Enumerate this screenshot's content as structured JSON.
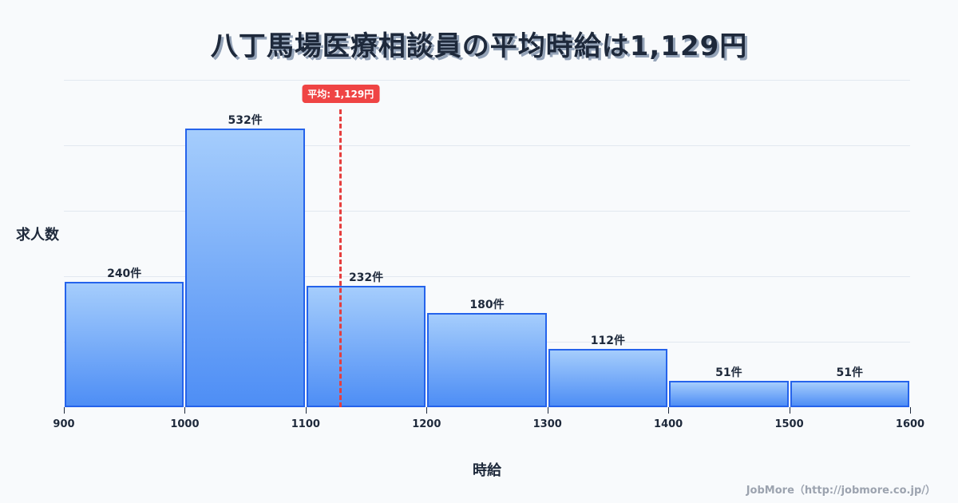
{
  "title": "八丁馬場医療相談員の平均時給は1,129円",
  "y_axis_label": "求人数",
  "x_axis_label": "時給",
  "credit": "JobMore（http://jobmore.co.jp/）",
  "average_badge": "平均: 1,129円",
  "colors": {
    "bar_border": "#2563eb",
    "bar_top": "#a5cdfc",
    "bar_bottom": "#4e8ef5",
    "average_line": "#ef4444",
    "text": "#1e293b"
  },
  "chart_data": {
    "type": "bar",
    "title": "八丁馬場医療相談員の平均時給は1,129円",
    "xlabel": "時給",
    "ylabel": "求人数",
    "bins": [
      [
        900,
        1000
      ],
      [
        1000,
        1100
      ],
      [
        1100,
        1200
      ],
      [
        1200,
        1300
      ],
      [
        1300,
        1400
      ],
      [
        1400,
        1500
      ],
      [
        1500,
        1600
      ]
    ],
    "categories": [
      "900-1000",
      "1000-1100",
      "1100-1200",
      "1200-1300",
      "1300-1400",
      "1400-1500",
      "1500-1600"
    ],
    "values": [
      240,
      532,
      232,
      180,
      112,
      51,
      51
    ],
    "value_labels": [
      "240件",
      "532件",
      "232件",
      "180件",
      "112件",
      "51件",
      "51件"
    ],
    "x_ticks": [
      "900",
      "1000",
      "1100",
      "1200",
      "1300",
      "1400",
      "1500",
      "1600"
    ],
    "xlim": [
      900,
      1600
    ],
    "ylim": [
      0,
      625
    ],
    "grid": true,
    "average": 1129,
    "average_label": "平均: 1,129円"
  }
}
